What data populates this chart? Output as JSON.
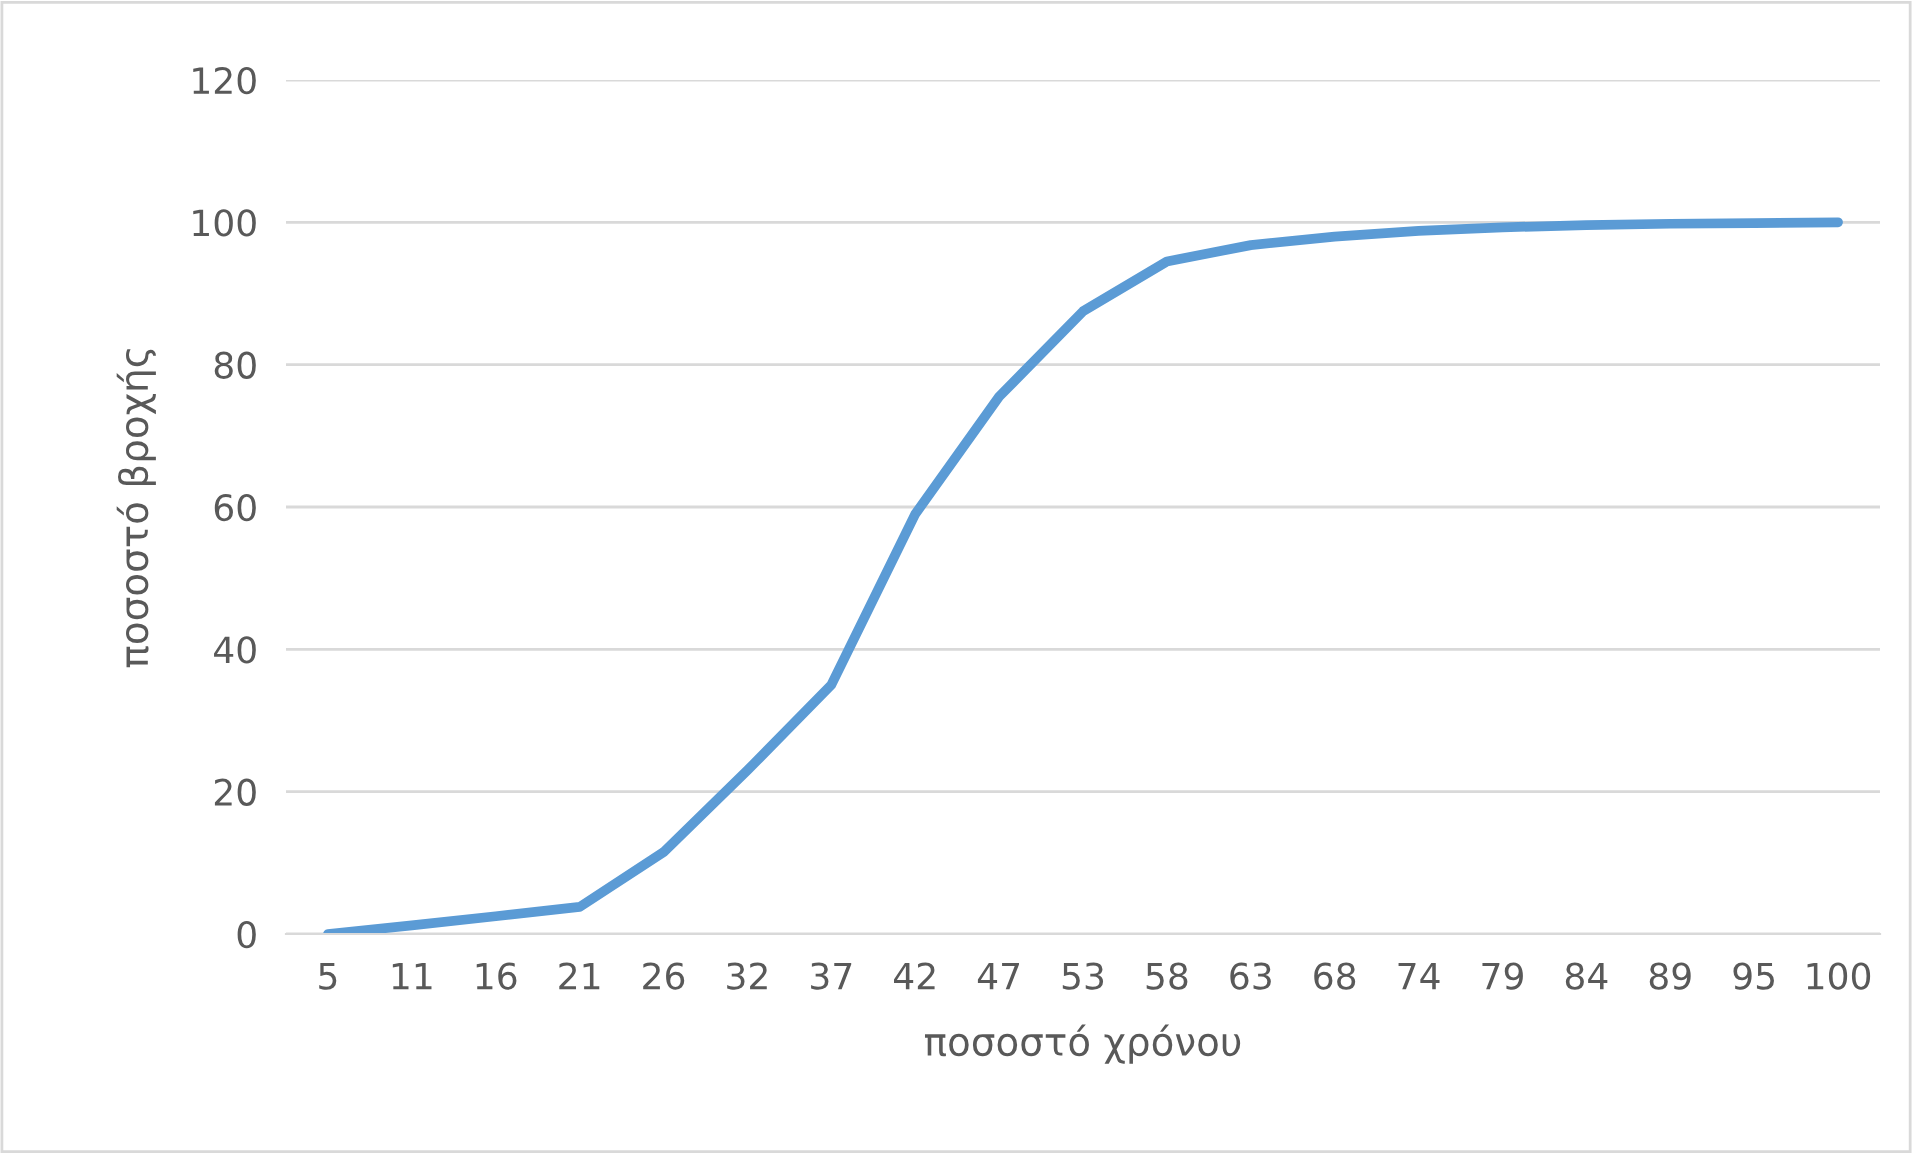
{
  "chart_data": {
    "type": "line",
    "xlabel": "ποσοστό χρόνου",
    "ylabel": "ποσοστό βροχής",
    "categories": [
      "5",
      "11",
      "16",
      "21",
      "26",
      "32",
      "37",
      "42",
      "47",
      "53",
      "58",
      "63",
      "68",
      "74",
      "79",
      "84",
      "89",
      "95",
      "100"
    ],
    "series": [
      {
        "color": "#5b9bd5",
        "values": [
          0,
          1.2,
          2.5,
          3.8,
          11.5,
          23,
          35,
          59,
          75.5,
          87.5,
          94.5,
          96.8,
          98,
          98.8,
          99.3,
          99.6,
          99.8,
          99.9,
          100
        ]
      }
    ],
    "ylim": [
      0,
      120
    ],
    "yticks": [
      0,
      20,
      40,
      60,
      80,
      100,
      120
    ],
    "grid": "y",
    "marker": "none",
    "line_style": "solid"
  }
}
